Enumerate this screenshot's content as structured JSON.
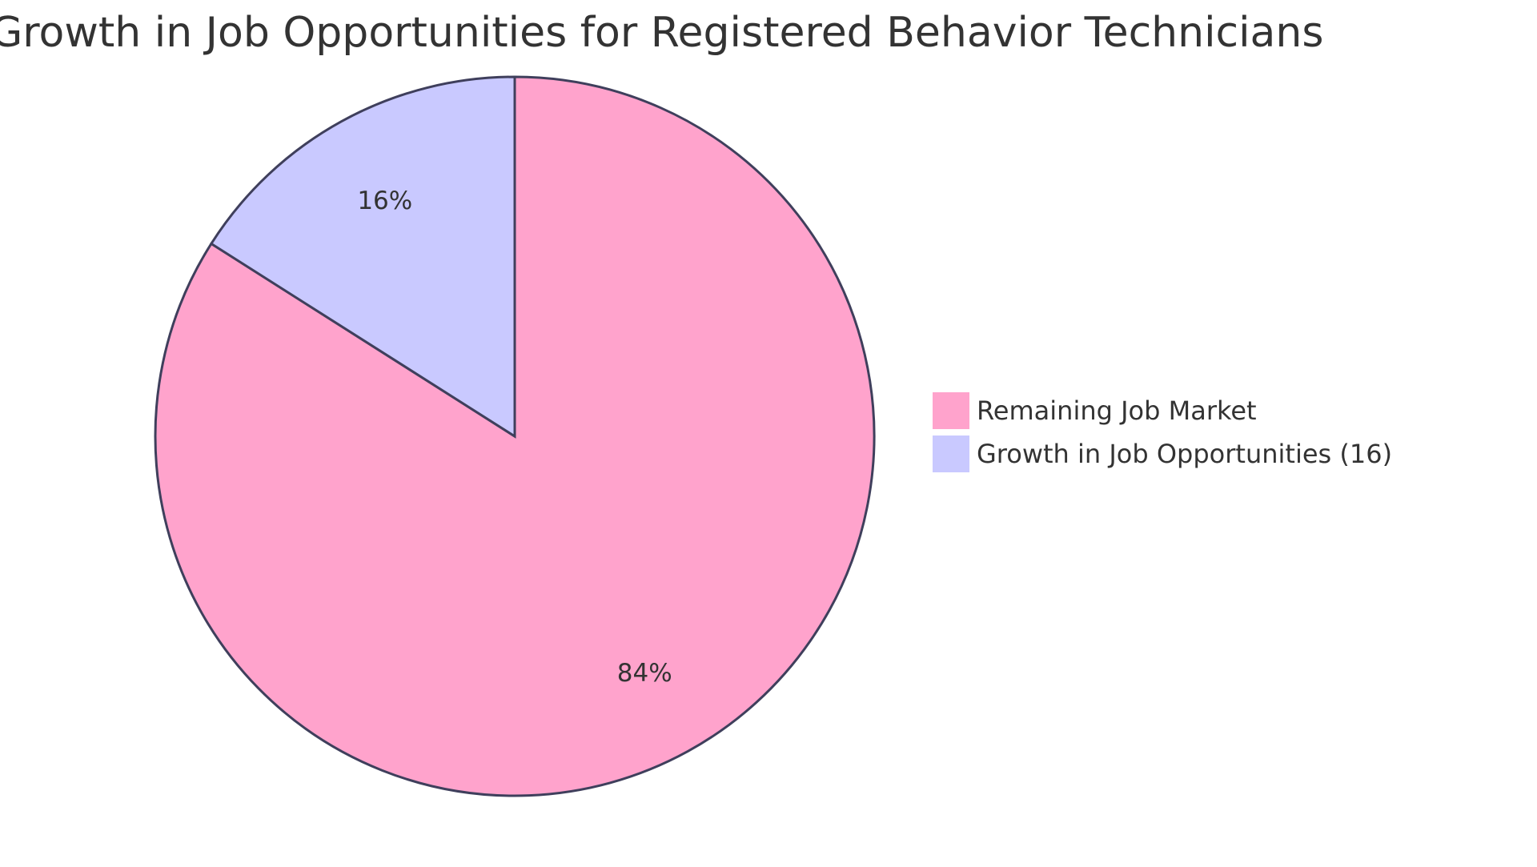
{
  "chart_data": {
    "type": "pie",
    "title": "Growth in Job Opportunities for Registered Behavior Technicians",
    "slices": [
      {
        "label": "Remaining Job Market",
        "value": 84,
        "display": "84%",
        "color": "#ffa3cc"
      },
      {
        "label": "Growth in Job Opportunities (16)",
        "value": 16,
        "display": "16%",
        "color": "#c9c9ff"
      }
    ],
    "legend": {
      "placement": "right"
    },
    "stroke_color": "#3f3f5c"
  }
}
